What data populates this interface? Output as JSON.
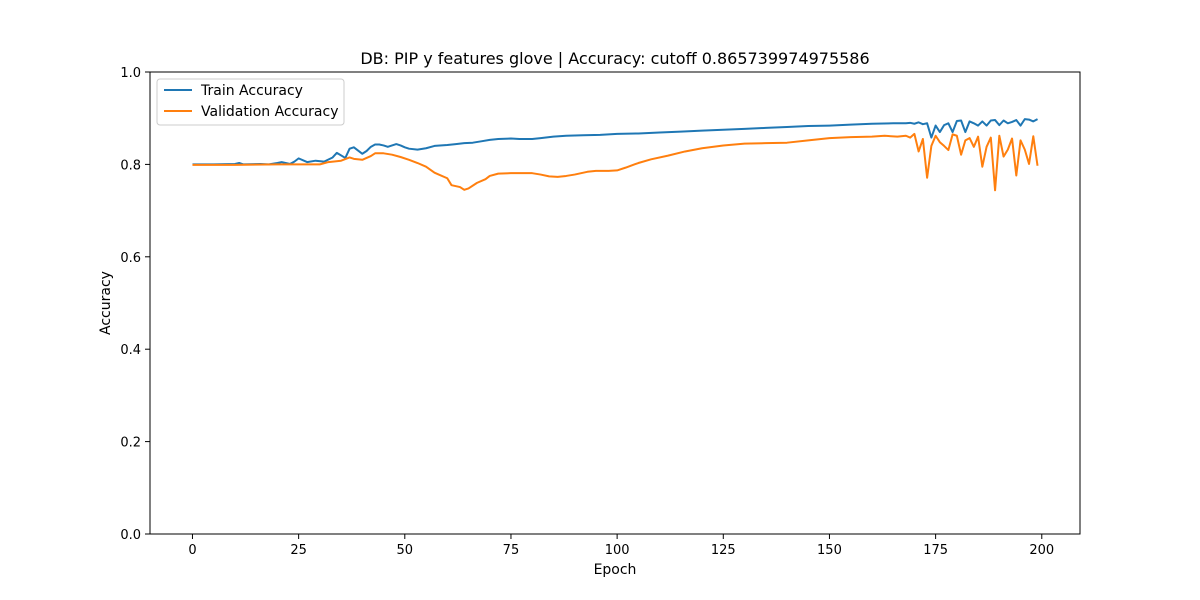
{
  "chart_data": {
    "type": "line",
    "title": "DB: PIP y features glove | Accuracy: cutoff 0.865739974975586",
    "xlabel": "Epoch",
    "ylabel": "Accuracy",
    "xlim": [
      -10,
      209
    ],
    "ylim": [
      0.0,
      1.0
    ],
    "xticks": [
      0,
      25,
      50,
      75,
      100,
      125,
      150,
      175,
      200
    ],
    "yticks": [
      0.0,
      0.2,
      0.4,
      0.6,
      0.8,
      1.0
    ],
    "xtick_labels": [
      "0",
      "25",
      "50",
      "75",
      "100",
      "125",
      "150",
      "175",
      "200"
    ],
    "ytick_labels": [
      "0.0",
      "0.2",
      "0.4",
      "0.6",
      "0.8",
      "1.0"
    ],
    "grid": false,
    "legend_position": "top-left",
    "series": [
      {
        "name": "Train Accuracy",
        "color": "#1f77b4",
        "points": [
          [
            0,
            0.8
          ],
          [
            5,
            0.8
          ],
          [
            10,
            0.801
          ],
          [
            11,
            0.803
          ],
          [
            12,
            0.8
          ],
          [
            16,
            0.801
          ],
          [
            18,
            0.8
          ],
          [
            20,
            0.803
          ],
          [
            21,
            0.805
          ],
          [
            23,
            0.801
          ],
          [
            24,
            0.806
          ],
          [
            25,
            0.813
          ],
          [
            27,
            0.805
          ],
          [
            29,
            0.808
          ],
          [
            31,
            0.806
          ],
          [
            33,
            0.815
          ],
          [
            34,
            0.825
          ],
          [
            36,
            0.814
          ],
          [
            37,
            0.834
          ],
          [
            38,
            0.837
          ],
          [
            39,
            0.83
          ],
          [
            40,
            0.823
          ],
          [
            41,
            0.829
          ],
          [
            42,
            0.838
          ],
          [
            43,
            0.843
          ],
          [
            44,
            0.843
          ],
          [
            45,
            0.841
          ],
          [
            46,
            0.838
          ],
          [
            47,
            0.841
          ],
          [
            48,
            0.844
          ],
          [
            49,
            0.841
          ],
          [
            50,
            0.837
          ],
          [
            51,
            0.834
          ],
          [
            53,
            0.832
          ],
          [
            55,
            0.835
          ],
          [
            57,
            0.84
          ],
          [
            60,
            0.842
          ],
          [
            62,
            0.844
          ],
          [
            64,
            0.846
          ],
          [
            66,
            0.847
          ],
          [
            68,
            0.85
          ],
          [
            70,
            0.853
          ],
          [
            72,
            0.855
          ],
          [
            75,
            0.856
          ],
          [
            77,
            0.855
          ],
          [
            80,
            0.855
          ],
          [
            82,
            0.857
          ],
          [
            85,
            0.86
          ],
          [
            88,
            0.862
          ],
          [
            92,
            0.863
          ],
          [
            96,
            0.864
          ],
          [
            100,
            0.866
          ],
          [
            105,
            0.867
          ],
          [
            110,
            0.869
          ],
          [
            115,
            0.871
          ],
          [
            120,
            0.873
          ],
          [
            125,
            0.875
          ],
          [
            130,
            0.877
          ],
          [
            135,
            0.879
          ],
          [
            140,
            0.881
          ],
          [
            145,
            0.883
          ],
          [
            150,
            0.884
          ],
          [
            155,
            0.886
          ],
          [
            160,
            0.888
          ],
          [
            165,
            0.889
          ],
          [
            168,
            0.889
          ],
          [
            169,
            0.89
          ],
          [
            170,
            0.888
          ],
          [
            171,
            0.891
          ],
          [
            172,
            0.887
          ],
          [
            173,
            0.889
          ],
          [
            174,
            0.858
          ],
          [
            175,
            0.884
          ],
          [
            176,
            0.87
          ],
          [
            177,
            0.885
          ],
          [
            178,
            0.889
          ],
          [
            179,
            0.87
          ],
          [
            180,
            0.894
          ],
          [
            181,
            0.895
          ],
          [
            182,
            0.87
          ],
          [
            183,
            0.893
          ],
          [
            184,
            0.889
          ],
          [
            185,
            0.884
          ],
          [
            186,
            0.893
          ],
          [
            187,
            0.884
          ],
          [
            188,
            0.895
          ],
          [
            189,
            0.896
          ],
          [
            190,
            0.885
          ],
          [
            191,
            0.895
          ],
          [
            192,
            0.889
          ],
          [
            193,
            0.892
          ],
          [
            194,
            0.896
          ],
          [
            195,
            0.884
          ],
          [
            196,
            0.898
          ],
          [
            197,
            0.897
          ],
          [
            198,
            0.893
          ],
          [
            199,
            0.898
          ]
        ]
      },
      {
        "name": "Validation Accuracy",
        "color": "#ff7f0e",
        "points": [
          [
            0,
            0.799
          ],
          [
            10,
            0.799
          ],
          [
            20,
            0.8
          ],
          [
            25,
            0.8
          ],
          [
            30,
            0.8
          ],
          [
            32,
            0.805
          ],
          [
            35,
            0.808
          ],
          [
            37,
            0.815
          ],
          [
            38,
            0.812
          ],
          [
            40,
            0.81
          ],
          [
            42,
            0.818
          ],
          [
            43,
            0.824
          ],
          [
            45,
            0.824
          ],
          [
            47,
            0.821
          ],
          [
            49,
            0.816
          ],
          [
            51,
            0.81
          ],
          [
            53,
            0.803
          ],
          [
            55,
            0.795
          ],
          [
            57,
            0.782
          ],
          [
            58,
            0.778
          ],
          [
            60,
            0.77
          ],
          [
            61,
            0.755
          ],
          [
            63,
            0.751
          ],
          [
            64,
            0.745
          ],
          [
            65,
            0.748
          ],
          [
            67,
            0.76
          ],
          [
            69,
            0.768
          ],
          [
            70,
            0.775
          ],
          [
            72,
            0.78
          ],
          [
            75,
            0.781
          ],
          [
            78,
            0.781
          ],
          [
            80,
            0.781
          ],
          [
            82,
            0.778
          ],
          [
            84,
            0.774
          ],
          [
            86,
            0.773
          ],
          [
            88,
            0.775
          ],
          [
            90,
            0.778
          ],
          [
            93,
            0.784
          ],
          [
            95,
            0.786
          ],
          [
            98,
            0.786
          ],
          [
            100,
            0.787
          ],
          [
            102,
            0.793
          ],
          [
            105,
            0.803
          ],
          [
            108,
            0.811
          ],
          [
            112,
            0.819
          ],
          [
            116,
            0.828
          ],
          [
            120,
            0.835
          ],
          [
            125,
            0.841
          ],
          [
            130,
            0.845
          ],
          [
            135,
            0.846
          ],
          [
            140,
            0.847
          ],
          [
            145,
            0.852
          ],
          [
            150,
            0.857
          ],
          [
            155,
            0.859
          ],
          [
            160,
            0.86
          ],
          [
            163,
            0.862
          ],
          [
            166,
            0.86
          ],
          [
            168,
            0.862
          ],
          [
            169,
            0.858
          ],
          [
            170,
            0.866
          ],
          [
            171,
            0.828
          ],
          [
            172,
            0.855
          ],
          [
            173,
            0.771
          ],
          [
            174,
            0.84
          ],
          [
            175,
            0.862
          ],
          [
            176,
            0.848
          ],
          [
            177,
            0.84
          ],
          [
            178,
            0.831
          ],
          [
            179,
            0.865
          ],
          [
            180,
            0.862
          ],
          [
            181,
            0.821
          ],
          [
            182,
            0.852
          ],
          [
            183,
            0.857
          ],
          [
            184,
            0.838
          ],
          [
            185,
            0.86
          ],
          [
            186,
            0.795
          ],
          [
            187,
            0.838
          ],
          [
            188,
            0.858
          ],
          [
            189,
            0.744
          ],
          [
            190,
            0.862
          ],
          [
            191,
            0.817
          ],
          [
            192,
            0.832
          ],
          [
            193,
            0.856
          ],
          [
            194,
            0.776
          ],
          [
            195,
            0.852
          ],
          [
            196,
            0.832
          ],
          [
            197,
            0.801
          ],
          [
            198,
            0.861
          ],
          [
            199,
            0.797
          ]
        ]
      }
    ]
  }
}
